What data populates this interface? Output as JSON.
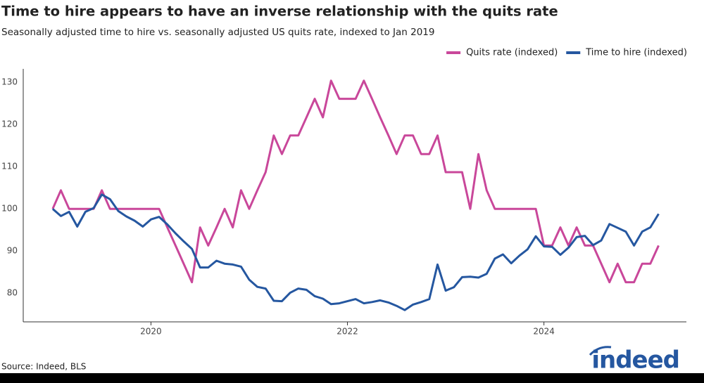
{
  "chart_data": {
    "type": "line",
    "title": "Time to hire appears to have an inverse relationship with the quits rate",
    "subtitle": "Seasonally adjusted time to hire vs. seasonally adjusted US quits rate, indexed to Jan 2019",
    "source": "Source: Indeed, BLS",
    "brand": "indeed",
    "legend": "top-right",
    "x": [
      2019.0,
      2019.083,
      2019.167,
      2019.25,
      2019.333,
      2019.417,
      2019.5,
      2019.583,
      2019.667,
      2019.75,
      2019.833,
      2019.917,
      2020.0,
      2020.083,
      2020.167,
      2020.25,
      2020.333,
      2020.417,
      2020.5,
      2020.583,
      2020.667,
      2020.75,
      2020.833,
      2020.917,
      2021.0,
      2021.083,
      2021.167,
      2021.25,
      2021.333,
      2021.417,
      2021.5,
      2021.583,
      2021.667,
      2021.75,
      2021.833,
      2021.917,
      2022.0,
      2022.083,
      2022.167,
      2022.25,
      2022.333,
      2022.417,
      2022.5,
      2022.583,
      2022.667,
      2022.75,
      2022.833,
      2022.917,
      2023.0,
      2023.083,
      2023.167,
      2023.25,
      2023.333,
      2023.417,
      2023.5,
      2023.583,
      2023.667,
      2023.75,
      2023.833,
      2023.917,
      2024.0,
      2024.083,
      2024.167,
      2024.25,
      2024.333,
      2024.417,
      2024.5,
      2024.583,
      2024.667,
      2024.75,
      2024.833,
      2024.917,
      2025.0,
      2025.083,
      2025.167
    ],
    "series": [
      {
        "name": "Quits rate (indexed)",
        "color": "#c9479a",
        "values": [
          100,
          104.4,
          100,
          100,
          100,
          100,
          104.4,
          100,
          100,
          100,
          100,
          100,
          100,
          100,
          95.6,
          91.3,
          87,
          82.6,
          95.6,
          91.3,
          95.6,
          100,
          95.6,
          104.4,
          100,
          104.4,
          108.7,
          117.4,
          113,
          117.4,
          117.4,
          121.7,
          126.1,
          121.7,
          130.4,
          126.1,
          126.1,
          126.1,
          130.4,
          126.1,
          121.7,
          117.4,
          113,
          117.4,
          117.4,
          113,
          113,
          117.4,
          108.7,
          108.7,
          108.7,
          100,
          113,
          104.4,
          100,
          100,
          100,
          100,
          100,
          100,
          91.3,
          91.3,
          95.6,
          91.3,
          95.6,
          91.3,
          91.3,
          87,
          82.6,
          87,
          82.6,
          82.6,
          87,
          87,
          91.3
        ]
      },
      {
        "name": "Time to hire (indexed)",
        "color": "#2557a0",
        "values": [
          100,
          98.3,
          99.3,
          95.8,
          99.3,
          100.2,
          103.4,
          102.3,
          99.5,
          98.2,
          97.2,
          95.8,
          97.5,
          98.1,
          96.3,
          94.2,
          92.3,
          90.5,
          86.1,
          86.1,
          87.7,
          87,
          86.8,
          86.3,
          83.2,
          81.5,
          81.1,
          78.2,
          78.1,
          80.1,
          81.1,
          80.8,
          79.3,
          78.7,
          77.4,
          77.6,
          78.1,
          78.6,
          77.6,
          77.9,
          78.3,
          77.8,
          77,
          76,
          77.3,
          77.9,
          78.6,
          86.8,
          80.6,
          81.4,
          83.8,
          83.9,
          83.7,
          84.6,
          88.2,
          89.2,
          87.1,
          88.9,
          90.4,
          93.5,
          91.1,
          91,
          89.1,
          90.8,
          93.3,
          93.6,
          91.4,
          92.5,
          96.4,
          95.5,
          94.6,
          91.3,
          94.6,
          95.6,
          98.8
        ]
      }
    ],
    "xlim": [
      2018.7,
      2025.45
    ],
    "xticks": [
      2020,
      2022,
      2024
    ],
    "ylim": [
      73.2,
      133.2
    ],
    "yticks": [
      80,
      90,
      100,
      110,
      120,
      130
    ]
  }
}
